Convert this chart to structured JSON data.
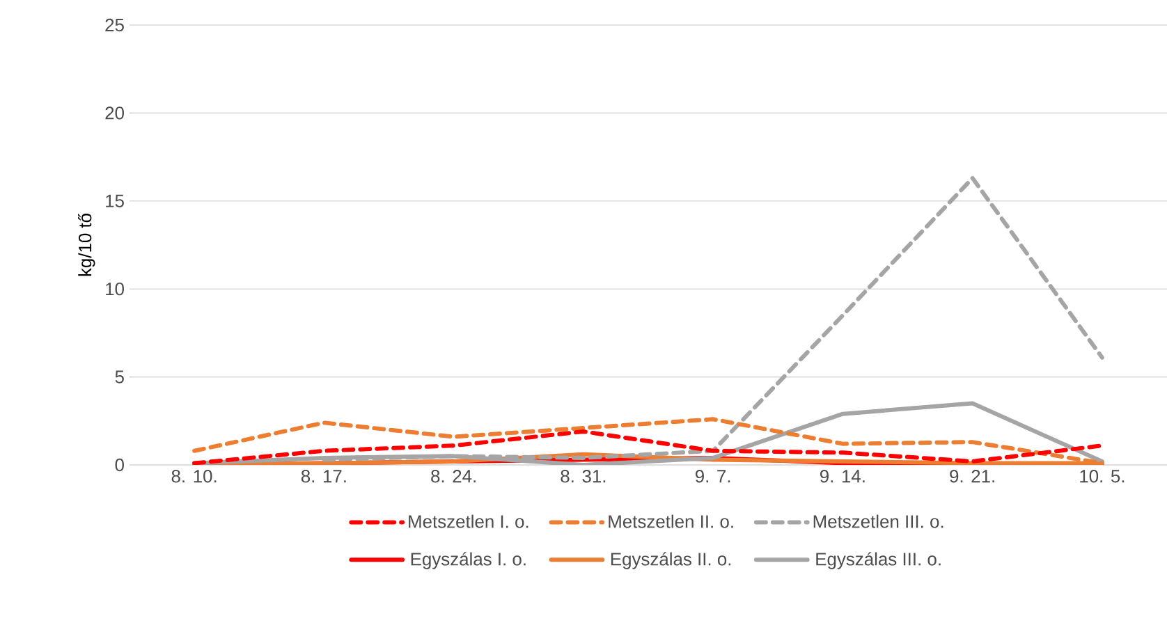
{
  "chart_data": {
    "type": "line",
    "ylabel": "kg/10 tő",
    "categories": [
      "8. 10.",
      "8. 17.",
      "8. 24.",
      "8. 31.",
      "9. 7.",
      "9. 14.",
      "9. 21.",
      "10. 5."
    ],
    "ylim": [
      0,
      25
    ],
    "yticks": [
      0,
      5,
      10,
      15,
      20,
      25
    ],
    "grid": "y",
    "legend": "bottom",
    "marker": "none",
    "series": [
      {
        "name": "Metszetlen I. o.",
        "color": "#ff0000",
        "line_style": "dashed",
        "values": [
          0.1,
          0.8,
          1.1,
          1.9,
          0.8,
          0.7,
          0.2,
          1.1
        ]
      },
      {
        "name": "Metszetlen II. o.",
        "color": "#ed7d31",
        "line_style": "dashed",
        "values": [
          0.8,
          2.4,
          1.6,
          2.1,
          2.6,
          1.2,
          1.3,
          0.1
        ]
      },
      {
        "name": "Metszetlen III. o.",
        "color": "#a5a5a5",
        "line_style": "dashed",
        "values": [
          null,
          0.3,
          0.5,
          0.4,
          0.8,
          8.5,
          16.3,
          6.1
        ]
      },
      {
        "name": "Egyszálas I. o.",
        "color": "#ff0000",
        "line_style": "solid",
        "values": [
          0,
          0.1,
          0.2,
          0.3,
          0.4,
          0.1,
          0,
          0
        ]
      },
      {
        "name": "Egyszálas II. o.",
        "color": "#ed7d31",
        "line_style": "solid",
        "values": [
          0,
          0.1,
          0.2,
          0.6,
          0.3,
          0.2,
          0.1,
          0.1
        ]
      },
      {
        "name": "Egyszálas III. o.",
        "color": "#a5a5a5",
        "line_style": "solid",
        "values": [
          0.1,
          0.4,
          0.5,
          0,
          0.4,
          2.9,
          3.5,
          0.2
        ]
      }
    ]
  }
}
